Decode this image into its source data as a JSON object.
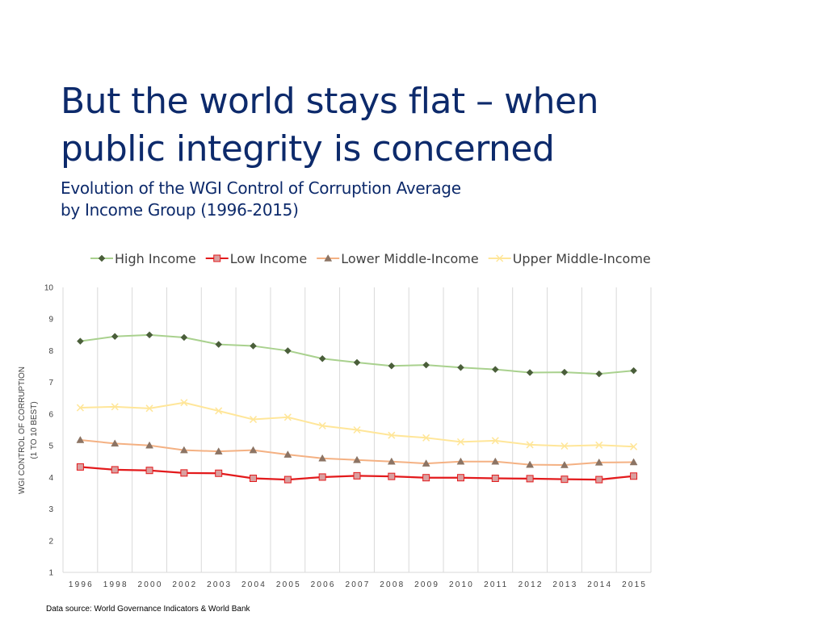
{
  "slide": {
    "title_line1": "But the world stays flat – when",
    "title_line2": "public integrity is concerned",
    "subtitle_line1": "Evolution of the WGI Control of Corruption Average",
    "subtitle_line2": "by Income Group (1996-2015)",
    "source": "Data source: World Governance Indicators & World Bank"
  },
  "chart_data": {
    "type": "line",
    "ylabel_line1": "WGI CONTROL OF CORRUPTION",
    "ylabel_line2": "(1 TO 10 BEST)",
    "xlabel": "",
    "ylim": [
      1,
      10
    ],
    "yticks": [
      1,
      2,
      3,
      4,
      5,
      6,
      7,
      8,
      9,
      10
    ],
    "grid": "vertical",
    "legend_position": "top",
    "categories": [
      "1996",
      "1998",
      "2000",
      "2002",
      "2003",
      "2004",
      "2005",
      "2006",
      "2007",
      "2008",
      "2009",
      "2010",
      "2011",
      "2012",
      "2013",
      "2014",
      "2015"
    ],
    "series": [
      {
        "name": "High Income",
        "color": "#a9d18e",
        "marker": "diamond",
        "marker_color": "#4a5e3a",
        "values": [
          8.3,
          8.45,
          8.5,
          8.42,
          8.2,
          8.15,
          8.0,
          7.75,
          7.63,
          7.52,
          7.55,
          7.47,
          7.41,
          7.31,
          7.32,
          7.27,
          7.37
        ]
      },
      {
        "name": "Low Income",
        "color": "#e31a1c",
        "marker": "square",
        "marker_color": "#d9a0a0",
        "values": [
          4.33,
          4.24,
          4.22,
          4.14,
          4.13,
          3.97,
          3.93,
          4.01,
          4.05,
          4.03,
          3.99,
          3.99,
          3.97,
          3.96,
          3.94,
          3.93,
          4.04
        ]
      },
      {
        "name": "Lower Middle-Income",
        "color": "#f4b183",
        "marker": "triangle",
        "marker_color": "#8c7464",
        "values": [
          5.18,
          5.07,
          5.01,
          4.86,
          4.82,
          4.86,
          4.72,
          4.6,
          4.55,
          4.5,
          4.44,
          4.5,
          4.5,
          4.4,
          4.39,
          4.47,
          4.48
        ]
      },
      {
        "name": "Upper Middle-Income",
        "color": "#ffe699",
        "marker": "x",
        "marker_color": "#ffe699",
        "values": [
          6.2,
          6.23,
          6.18,
          6.36,
          6.1,
          5.83,
          5.9,
          5.63,
          5.5,
          5.33,
          5.25,
          5.12,
          5.16,
          5.03,
          4.99,
          5.02,
          4.97
        ]
      }
    ]
  }
}
